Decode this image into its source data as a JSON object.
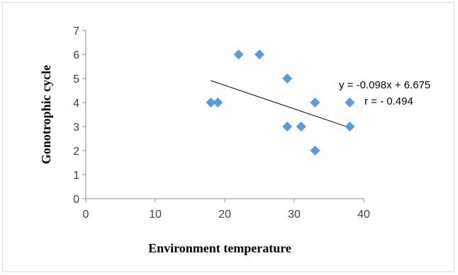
{
  "chart_data": {
    "type": "scatter",
    "title": "",
    "xlabel": "Environment temperature",
    "ylabel": "Gonotrophic cycle",
    "xlim": [
      0,
      40
    ],
    "ylim": [
      0,
      7
    ],
    "x_ticks": [
      "0",
      "10",
      "20",
      "30",
      "40"
    ],
    "y_ticks": [
      "0",
      "1",
      "2",
      "3",
      "4",
      "5",
      "6",
      "7"
    ],
    "grid": false,
    "legend": "none",
    "marker_color": "#5b9bd5",
    "series": [
      {
        "points": [
          {
            "x": 18,
            "y": 4
          },
          {
            "x": 19,
            "y": 4
          },
          {
            "x": 22,
            "y": 6
          },
          {
            "x": 25,
            "y": 6
          },
          {
            "x": 29,
            "y": 5
          },
          {
            "x": 29,
            "y": 3
          },
          {
            "x": 31,
            "y": 3
          },
          {
            "x": 33,
            "y": 4
          },
          {
            "x": 33,
            "y": 2
          },
          {
            "x": 38,
            "y": 4
          },
          {
            "x": 38,
            "y": 3
          }
        ]
      }
    ],
    "trendline": {
      "slope": -0.098,
      "intercept": 6.675,
      "x_range": [
        18,
        38
      ]
    },
    "annotations": {
      "equation": "y = -0.098x + 6.675",
      "correlation": "r =  - 0.494"
    }
  }
}
